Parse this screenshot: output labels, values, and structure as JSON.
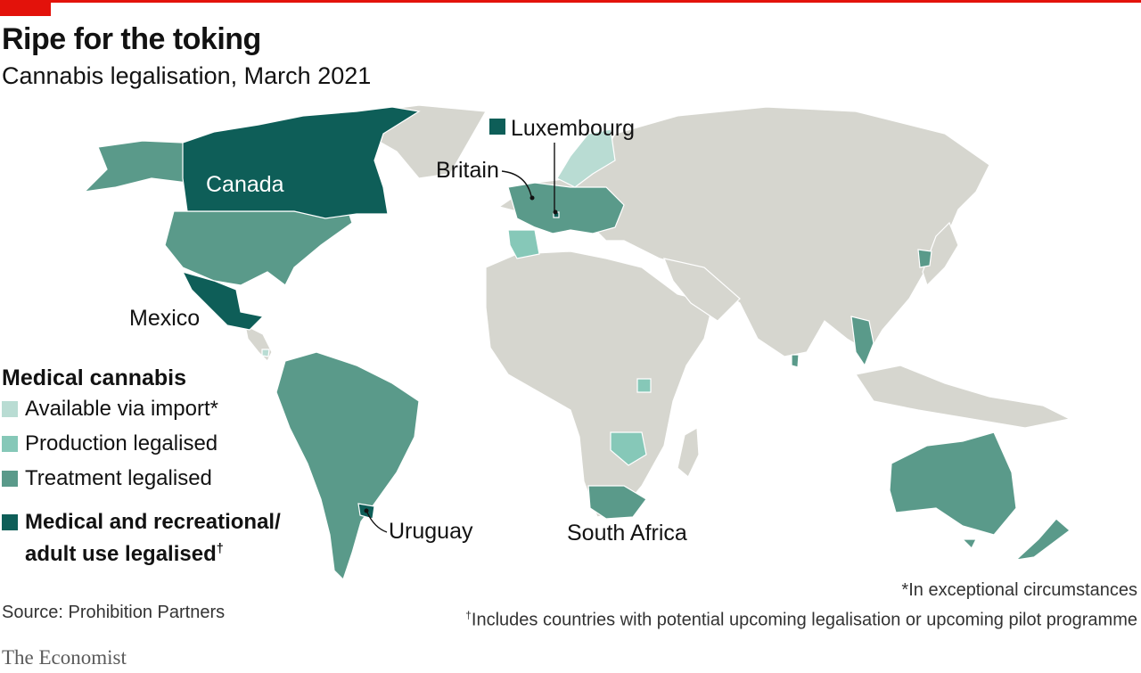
{
  "title": "Ripe for the toking",
  "subtitle": "Cannabis legalisation, March 2021",
  "colors": {
    "accent_red": "#e3120b",
    "land_default": "#d6d6cf",
    "available_via_import": "#b9dcd3",
    "production_legalised": "#86c8b8",
    "treatment_legalised": "#5a9a8a",
    "medical_and_recreational": "#0e5e58"
  },
  "legend": {
    "title": "Medical cannabis",
    "items": [
      {
        "label": "Available via import*",
        "color": "#b9dcd3"
      },
      {
        "label": "Production legalised",
        "color": "#86c8b8"
      },
      {
        "label": "Treatment legalised",
        "color": "#5a9a8a"
      }
    ],
    "strong_item": {
      "line1": "Medical and recreational/",
      "line2": "adult use legalised",
      "mark": "†",
      "color": "#0e5e58"
    }
  },
  "labels": {
    "canada": "Canada",
    "mexico": "Mexico",
    "britain": "Britain",
    "luxembourg": "Luxembourg",
    "uruguay": "Uruguay",
    "south_africa": "South Africa"
  },
  "categories": {
    "medical_and_recreational": [
      "Canada",
      "Mexico",
      "Uruguay",
      "Luxembourg"
    ],
    "treatment_legalised": [
      "United States",
      "Alaska",
      "Brazil",
      "Argentina",
      "Peru",
      "Colombia",
      "Ecuador",
      "Britain",
      "Germany",
      "Italy",
      "Greece",
      "South Africa",
      "Australia",
      "New Zealand",
      "Thailand",
      "Sri Lanka",
      "South Korea"
    ],
    "production_legalised": [
      "Portugal",
      "Zimbabwe",
      "Lesotho",
      "Uganda",
      "Denmark"
    ],
    "available_via_import": [
      "Norway",
      "Sweden",
      "Costa Rica"
    ]
  },
  "notes": {
    "note1": "*In exceptional circumstances",
    "note2_mark": "†",
    "note2": "Includes countries with potential upcoming legalisation or upcoming pilot programme"
  },
  "source": "Source: Prohibition Partners",
  "brand": "The Economist"
}
